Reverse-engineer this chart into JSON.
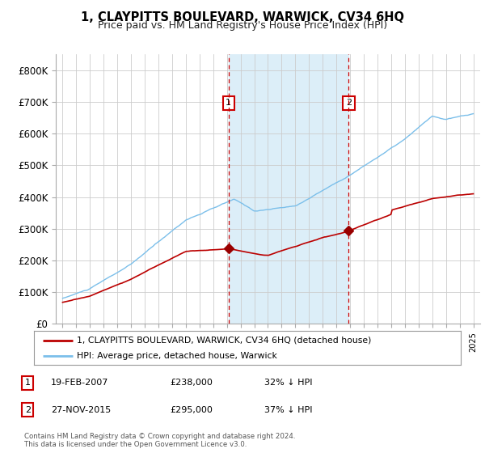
{
  "title": "1, CLAYPITTS BOULEVARD, WARWICK, CV34 6HQ",
  "subtitle": "Price paid vs. HM Land Registry's House Price Index (HPI)",
  "legend_line1": "1, CLAYPITTS BOULEVARD, WARWICK, CV34 6HQ (detached house)",
  "legend_line2": "HPI: Average price, detached house, Warwick",
  "annotation1_label": "1",
  "annotation1_date": "19-FEB-2007",
  "annotation1_price": "£238,000",
  "annotation1_hpi": "32% ↓ HPI",
  "annotation2_label": "2",
  "annotation2_date": "27-NOV-2015",
  "annotation2_price": "£295,000",
  "annotation2_hpi": "37% ↓ HPI",
  "footnote1": "Contains HM Land Registry data © Crown copyright and database right 2024.",
  "footnote2": "This data is licensed under the Open Government Licence v3.0.",
  "hpi_color": "#7bbfea",
  "hpi_fill_color": "#dceef8",
  "price_color": "#bb0000",
  "marker_color": "#990000",
  "vline_color": "#cc0000",
  "annotation_box_color": "#cc0000",
  "ylim_min": 0,
  "ylim_max": 850000,
  "yticks": [
    0,
    100000,
    200000,
    300000,
    400000,
    500000,
    600000,
    700000,
    800000
  ],
  "ytick_labels": [
    "£0",
    "£100K",
    "£200K",
    "£300K",
    "£400K",
    "£500K",
    "£600K",
    "£700K",
    "£800K"
  ],
  "year_start": 1995,
  "year_end": 2025,
  "sale1_year": 2007.12,
  "sale1_price": 238000,
  "sale2_year": 2015.9,
  "sale2_price": 295000,
  "background_color": "#ffffff",
  "grid_color": "#cccccc"
}
